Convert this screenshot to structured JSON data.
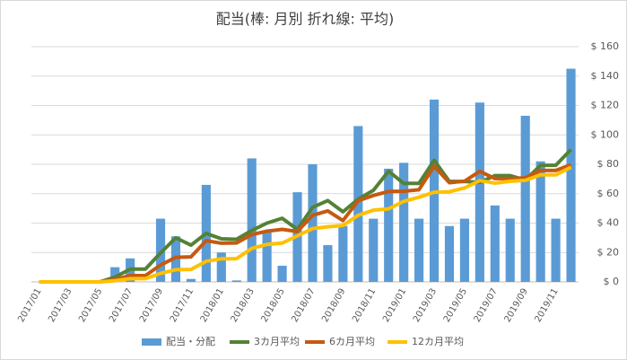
{
  "chart_data": {
    "type": "bar_line",
    "title": "配当(棒: 月別  折れ線: 平均)",
    "categories": [
      "2017/01",
      null,
      "2017/03",
      null,
      "2017/05",
      null,
      "2017/07",
      null,
      "2017/09",
      null,
      "2017/11",
      null,
      "2018/01",
      null,
      "2018/03",
      null,
      "2018/05",
      null,
      "2018/07",
      null,
      "2018/09",
      null,
      "2018/11",
      null,
      "2019/01",
      null,
      "2019/03",
      null,
      "2019/05",
      null,
      "2019/07",
      null,
      "2019/09",
      null,
      "2019/11",
      null
    ],
    "series": [
      {
        "name": "配当・分配",
        "type": "bar",
        "color": "#5b9bd5",
        "values": [
          0,
          0,
          0,
          0,
          0,
          10,
          16,
          0,
          43,
          31,
          2,
          66,
          20,
          1,
          84,
          35,
          11,
          61,
          80,
          25,
          38,
          106,
          43,
          77,
          81,
          43,
          124,
          38,
          43,
          122,
          52,
          43,
          113,
          82,
          43,
          145
        ]
      },
      {
        "name": "3カ月平均",
        "type": "line",
        "color": "#548235",
        "values": [
          0,
          0,
          0,
          0,
          0,
          3.3,
          8.7,
          8.7,
          19.7,
          30,
          25,
          33,
          29.3,
          29,
          35,
          40,
          43.3,
          35.7,
          50.7,
          55.3,
          47.7,
          56.3,
          62.3,
          75.3,
          67,
          67,
          82.7,
          68.3,
          68.3,
          67.7,
          72.3,
          72.3,
          69.3,
          79.3,
          79.3,
          90
        ]
      },
      {
        "name": "6カ月平均",
        "type": "line",
        "color": "#c55a11",
        "values": [
          0,
          0,
          0,
          0,
          0,
          1.7,
          4.3,
          4.3,
          11.5,
          16.7,
          17,
          28,
          26.3,
          26.5,
          32.2,
          34.5,
          35.7,
          34.3,
          45.3,
          48.3,
          41.7,
          55.2,
          58.8,
          61.5,
          61.7,
          62.7,
          78.7,
          67.5,
          68.5,
          75.2,
          70.3,
          70.3,
          70.8,
          75.8,
          75.8,
          79.7
        ]
      },
      {
        "name": "12カ月平均",
        "type": "line",
        "color": "#ffc000",
        "values": [
          0,
          0,
          0,
          0,
          0,
          0.8,
          2.2,
          2.2,
          5.8,
          8.3,
          8.5,
          14,
          15.7,
          15.8,
          22.8,
          25.5,
          26.4,
          31.3,
          36.3,
          37.5,
          38.4,
          45.3,
          48.8,
          49.7,
          54.8,
          57.6,
          61,
          61.3,
          63.9,
          68.9,
          67.2,
          68.5,
          69.1,
          72.8,
          72.8,
          78
        ]
      }
    ],
    "ylim": [
      0,
      160
    ],
    "yticks": [
      {
        "value": 0,
        "label": "$ 0"
      },
      {
        "value": 20,
        "label": "$ 20"
      },
      {
        "value": 40,
        "label": "$ 40"
      },
      {
        "value": 60,
        "label": "$ 60"
      },
      {
        "value": 80,
        "label": "$ 80"
      },
      {
        "value": 100,
        "label": "$ 100"
      },
      {
        "value": 120,
        "label": "$ 120"
      },
      {
        "value": 140,
        "label": "$ 140"
      },
      {
        "value": 160,
        "label": "$ 160"
      }
    ],
    "grid": true,
    "legend": "bottom"
  }
}
